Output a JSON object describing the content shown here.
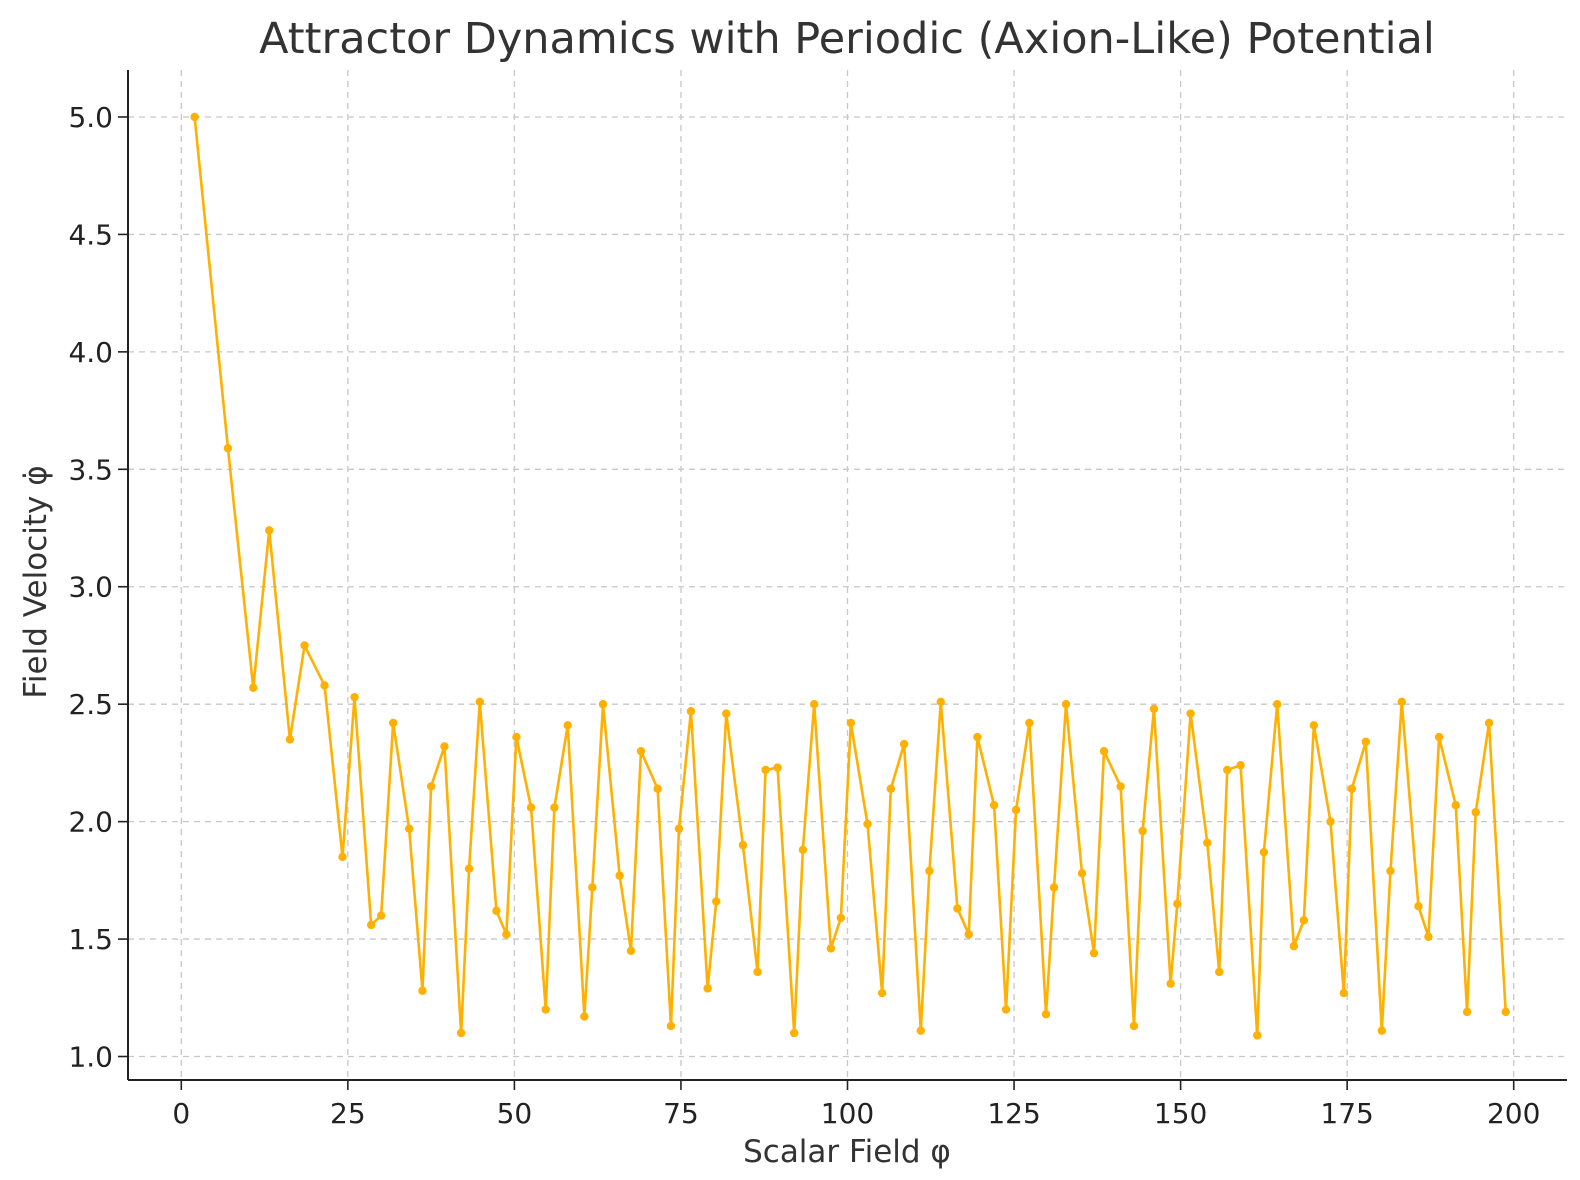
{
  "chart_data": {
    "type": "line",
    "title": "Attractor Dynamics with Periodic (Axion-Like) Potential",
    "xlabel": "Scalar Field φ",
    "ylabel": "Field Velocity φ̇",
    "xlim": [
      -8,
      208
    ],
    "ylim": [
      0.9,
      5.2
    ],
    "grid": true,
    "legend": "none",
    "x_ticks": [
      0,
      25,
      50,
      75,
      100,
      125,
      150,
      175,
      200
    ],
    "y_ticks": [
      1.0,
      1.5,
      2.0,
      2.5,
      3.0,
      3.5,
      4.0,
      4.5,
      5.0
    ],
    "colors": {
      "line": "#FFB000",
      "axis": "#222222",
      "grid": "#c8c8c8"
    },
    "series": [
      {
        "x": [
          2.0,
          7.0,
          10.8,
          13.2,
          16.3,
          18.5,
          21.5,
          24.2,
          26.0,
          28.5,
          30.0,
          31.8,
          34.2,
          36.2,
          37.5,
          39.5,
          42.0,
          43.2,
          44.8,
          47.3,
          48.8,
          50.3,
          52.5,
          54.7,
          56.0,
          58.0,
          60.5,
          61.7,
          63.3,
          65.8,
          67.5,
          69.0,
          71.5,
          73.5,
          74.7,
          76.5,
          79.0,
          80.3,
          81.8,
          84.3,
          86.5,
          87.7,
          89.5,
          92.0,
          93.3,
          95.0,
          97.5,
          99.0,
          100.5,
          103.0,
          105.2,
          106.5,
          108.5,
          111.0,
          112.3,
          114.0,
          116.5,
          118.2,
          119.5,
          122.0,
          123.8,
          125.3,
          127.3,
          129.8,
          131.0,
          132.8,
          135.2,
          137.0,
          138.5,
          141.0,
          143.0,
          144.3,
          146.0,
          148.5,
          149.5,
          151.5,
          154.0,
          155.8,
          157.0,
          159.0,
          161.5,
          162.5,
          164.5,
          167.0,
          168.5,
          170.0,
          172.5,
          174.5,
          175.7,
          177.8,
          180.2,
          181.5,
          183.2,
          185.7,
          187.2,
          188.8,
          191.3,
          193.0,
          194.3,
          196.3,
          198.8
        ],
        "y": [
          5.0,
          3.59,
          2.57,
          3.24,
          2.35,
          2.75,
          2.58,
          1.85,
          2.53,
          1.56,
          1.6,
          2.42,
          1.97,
          1.28,
          2.15,
          2.32,
          1.1,
          1.8,
          2.51,
          1.62,
          1.52,
          2.36,
          2.06,
          1.2,
          2.06,
          2.41,
          1.17,
          1.72,
          2.5,
          1.77,
          1.45,
          2.3,
          2.14,
          1.13,
          1.97,
          2.47,
          1.29,
          1.66,
          2.46,
          1.9,
          1.36,
          2.22,
          2.23,
          1.1,
          1.88,
          2.5,
          1.46,
          1.59,
          2.42,
          1.99,
          1.27,
          2.14,
          2.33,
          1.11,
          1.79,
          2.51,
          1.63,
          1.52,
          2.36,
          2.07,
          1.2,
          2.05,
          2.42,
          1.18,
          1.72,
          2.5,
          1.78,
          1.44,
          2.3,
          2.15,
          1.13,
          1.96,
          2.48,
          1.31,
          1.65,
          2.46,
          1.91,
          1.36,
          2.22,
          2.24,
          1.09,
          1.87,
          2.5,
          1.47,
          1.58,
          2.41,
          2.0,
          1.27,
          2.14,
          2.34,
          1.11,
          1.79,
          2.51,
          1.64,
          1.51,
          2.36,
          2.07,
          1.19,
          2.04,
          2.42,
          1.19
        ]
      }
    ]
  }
}
